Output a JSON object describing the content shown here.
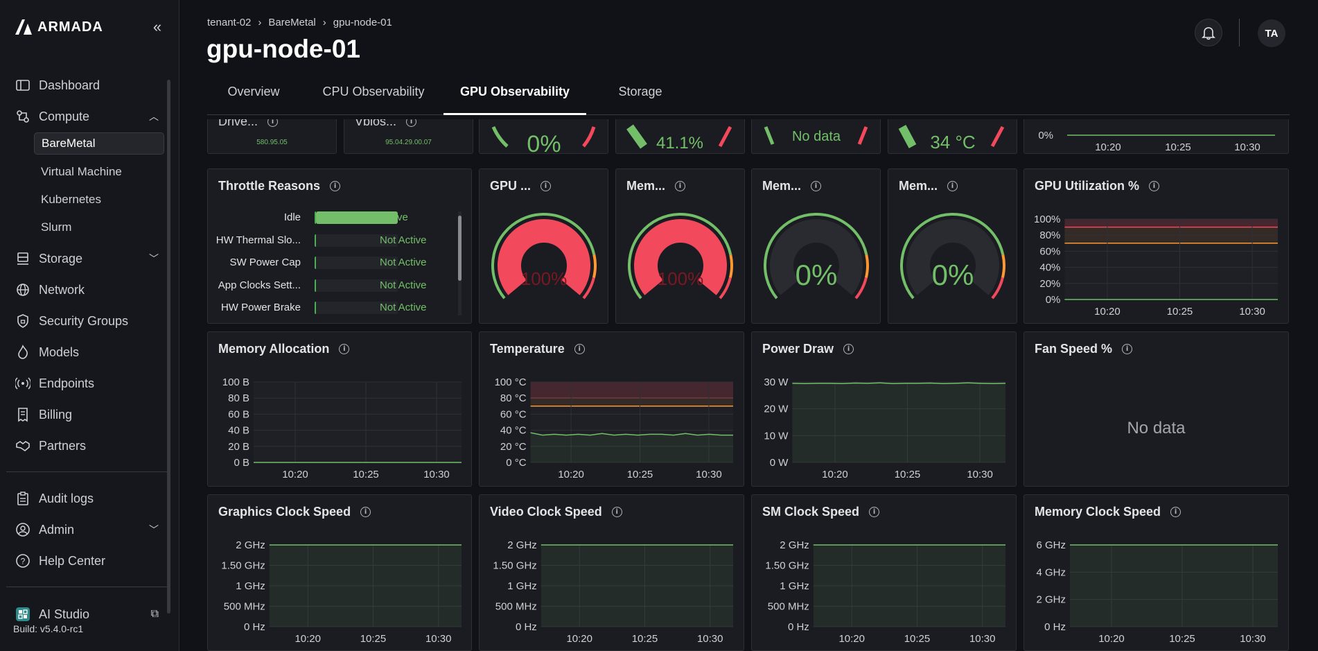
{
  "sidebar": {
    "brand": "ARMADA",
    "items": [
      {
        "label": "Dashboard",
        "icon": "dashboard-icon"
      },
      {
        "label": "Compute",
        "icon": "compute-icon"
      },
      {
        "label": "Storage",
        "icon": "storage-icon"
      },
      {
        "label": "Network",
        "icon": "network-icon"
      },
      {
        "label": "Security Groups",
        "icon": "shield-icon"
      },
      {
        "label": "Models",
        "icon": "flame-icon"
      },
      {
        "label": "Endpoints",
        "icon": "broadcast-icon"
      },
      {
        "label": "Billing",
        "icon": "billing-icon"
      },
      {
        "label": "Partners",
        "icon": "handshake-icon"
      },
      {
        "label": "Audit logs",
        "icon": "clipboard-icon"
      },
      {
        "label": "Admin",
        "icon": "user-gear-icon"
      },
      {
        "label": "Help Center",
        "icon": "help-icon"
      },
      {
        "label": "AI Studio",
        "icon": "ai-studio-icon"
      }
    ],
    "compute_sub": [
      "BareMetal",
      "Virtual Machine",
      "Kubernetes",
      "Slurm"
    ],
    "build": "Build: v5.4.0-rc1"
  },
  "header": {
    "breadcrumb": [
      "tenant-02",
      "BareMetal",
      "gpu-node-01"
    ],
    "title": "gpu-node-01",
    "avatar": "TA"
  },
  "tabs": [
    "Overview",
    "CPU Observability",
    "GPU Observability",
    "Storage"
  ],
  "active_tab": "GPU Observability",
  "top_row": {
    "driver": {
      "title": "Drive...",
      "value": "580.95.05"
    },
    "vbios": {
      "title": "Vbios...",
      "value": "95.04.29.00.07"
    },
    "gauges": [
      "0%",
      "41.1%",
      "No data",
      "34 °C"
    ],
    "util_partial": {
      "y_ticks": [
        "0%"
      ],
      "x_ticks": [
        "10:20",
        "10:25",
        "10:30"
      ]
    }
  },
  "throttle": {
    "title": "Throttle Reasons",
    "rows": [
      {
        "label": "Idle",
        "status": "Active",
        "fill": 1
      },
      {
        "label": "HW Thermal Slo...",
        "status": "Not Active",
        "fill": 0
      },
      {
        "label": "SW Power Cap",
        "status": "Not Active",
        "fill": 0
      },
      {
        "label": "App Clocks Sett...",
        "status": "Not Active",
        "fill": 0
      },
      {
        "label": "HW Power Brake",
        "status": "Not Active",
        "fill": 0
      }
    ]
  },
  "gauges": [
    {
      "title": "GPU ...",
      "value": "100%",
      "fraction": 1.0
    },
    {
      "title": "Mem...",
      "value": "100%",
      "fraction": 1.0
    },
    {
      "title": "Mem...",
      "value": "0%",
      "fraction": 0.0
    },
    {
      "title": "Mem...",
      "value": "0%",
      "fraction": 0.0
    }
  ],
  "colors": {
    "green": "#73bf69",
    "red": "#f2495c",
    "orange": "#ff9830",
    "yellow": "#fade2a"
  },
  "chart_data": [
    {
      "title": "GPU Utilization %",
      "type": "line",
      "x_ticks": [
        "10:20",
        "10:25",
        "10:30"
      ],
      "y_ticks": [
        "0%",
        "20%",
        "40%",
        "60%",
        "80%",
        "100%"
      ],
      "ylim": [
        0,
        100
      ],
      "y": [
        0,
        0,
        0,
        0,
        0,
        0,
        0,
        0,
        0,
        0,
        0,
        0
      ],
      "thresholds": [
        70,
        90
      ]
    },
    {
      "title": "Memory Allocation",
      "type": "line",
      "x_ticks": [
        "10:20",
        "10:25",
        "10:30"
      ],
      "y_ticks": [
        "0 B",
        "20 B",
        "40 B",
        "60 B",
        "80 B",
        "100 B"
      ],
      "ylim": [
        0,
        100
      ],
      "y": [
        0,
        0,
        0,
        0,
        0,
        0,
        0,
        0,
        0,
        0,
        0,
        0
      ]
    },
    {
      "title": "Temperature",
      "type": "line",
      "x_ticks": [
        "10:20",
        "10:25",
        "10:30"
      ],
      "y_ticks": [
        "0 °C",
        "20 °C",
        "40 °C",
        "60 °C",
        "80 °C",
        "100 °C"
      ],
      "ylim": [
        0,
        100
      ],
      "y": [
        37,
        34,
        35,
        34,
        35,
        34,
        36,
        34,
        35,
        34,
        35,
        35,
        34,
        36,
        34,
        35,
        34,
        34
      ],
      "thresholds": [
        70,
        80
      ]
    },
    {
      "title": "Power Draw",
      "type": "line",
      "x_ticks": [
        "10:20",
        "10:25",
        "10:30"
      ],
      "y_ticks": [
        "0 W",
        "10 W",
        "20 W",
        "30 W"
      ],
      "ylim": [
        0,
        32
      ],
      "y": [
        29.5,
        29.4,
        29.5,
        29.5,
        29.4,
        29.6,
        29.5,
        29.7,
        29.4,
        29.5,
        29.5,
        29.6,
        29.4,
        29.5,
        29.7,
        29.5,
        29.4,
        29.5
      ]
    },
    {
      "title": "Fan Speed %",
      "type": "line",
      "no_data": "No data"
    },
    {
      "title": "Graphics Clock Speed",
      "type": "line",
      "x_ticks": [
        "10:20",
        "10:25",
        "10:30"
      ],
      "y_ticks": [
        "0 Hz",
        "500 MHz",
        "1 GHz",
        "1.50 GHz",
        "2 GHz"
      ],
      "ylim": [
        0,
        2.2
      ],
      "y": [
        2,
        2,
        2,
        2,
        2,
        2,
        2,
        2,
        2,
        2
      ]
    },
    {
      "title": "Video Clock Speed",
      "type": "line",
      "x_ticks": [
        "10:20",
        "10:25",
        "10:30"
      ],
      "y_ticks": [
        "0 Hz",
        "500 MHz",
        "1 GHz",
        "1.50 GHz",
        "2 GHz"
      ],
      "ylim": [
        0,
        2.2
      ],
      "y": [
        2,
        2,
        2,
        2,
        2,
        2,
        2,
        2,
        2,
        2
      ]
    },
    {
      "title": "SM Clock Speed",
      "type": "line",
      "x_ticks": [
        "10:20",
        "10:25",
        "10:30"
      ],
      "y_ticks": [
        "0 Hz",
        "500 MHz",
        "1 GHz",
        "1.50 GHz",
        "2 GHz"
      ],
      "ylim": [
        0,
        2.2
      ],
      "y": [
        2,
        2,
        2,
        2,
        2,
        2,
        2,
        2,
        2,
        2
      ]
    },
    {
      "title": "Memory Clock Speed",
      "type": "line",
      "x_ticks": [
        "10:20",
        "10:25",
        "10:30"
      ],
      "y_ticks": [
        "0 Hz",
        "2 GHz",
        "4 GHz",
        "6 GHz"
      ],
      "ylim": [
        0,
        6.5
      ],
      "y": [
        6,
        6,
        6,
        6,
        6,
        6,
        6,
        6,
        6,
        6
      ]
    }
  ]
}
